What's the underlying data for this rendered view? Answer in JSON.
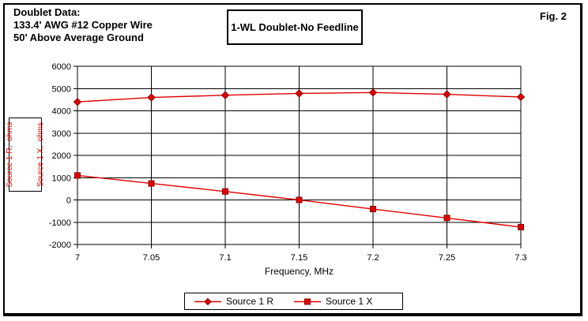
{
  "header": {
    "title_lines": [
      "Doublet Data:",
      "133.4' AWG #12 Copper Wire",
      "50' Above Average Ground"
    ],
    "chart_title": "1-WL Doublet-No Feedline",
    "fig_label": "Fig. 2"
  },
  "colors": {
    "accent_red": "#e00000",
    "marker_edge": "#8b0000",
    "grid": "#000000",
    "background": "#ffffff"
  },
  "chart_data": {
    "type": "line",
    "title": "1-WL Doublet-No Feedline",
    "x": [
      7,
      7.05,
      7.1,
      7.15,
      7.2,
      7.25,
      7.3
    ],
    "xlim": [
      7,
      7.3
    ],
    "ylim": [
      -2000,
      6000
    ],
    "xticks": [
      7,
      7.05,
      7.1,
      7.15,
      7.2,
      7.25,
      7.3
    ],
    "xtick_labels": [
      "7",
      "7.05",
      "7.1",
      "7.15",
      "7.2",
      "7.25",
      "7.3"
    ],
    "yticks": [
      6000,
      5000,
      4000,
      3000,
      2000,
      1000,
      0,
      -1000,
      -2000
    ],
    "ytick_labels": [
      "6000",
      "5000",
      "4000",
      "3000",
      "2000",
      "1000",
      "0",
      "-1000",
      "-2000"
    ],
    "grid": true,
    "xlabel": "Frequency, MHz",
    "ylabel_lines": [
      "Source 1 R,  ohms",
      "Source 1 X,  ohms"
    ],
    "legend_position": "bottom-center",
    "series": [
      {
        "name": "Source 1 R",
        "marker": "diamond",
        "values": [
          4400,
          4600,
          4700,
          4780,
          4820,
          4740,
          4620
        ]
      },
      {
        "name": "Source 1 X",
        "marker": "square",
        "values": [
          1100,
          740,
          380,
          0,
          -410,
          -810,
          -1220
        ]
      }
    ]
  }
}
